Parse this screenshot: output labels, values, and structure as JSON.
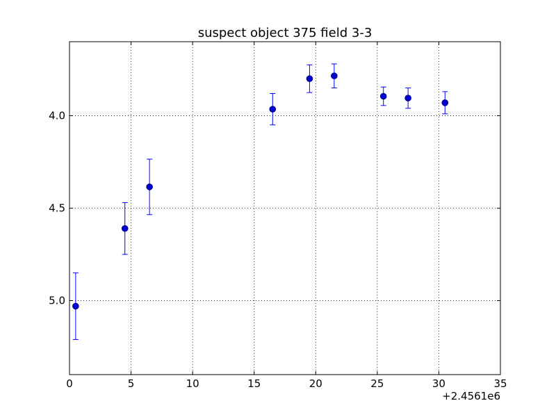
{
  "chart_data": {
    "type": "scatter",
    "title": "suspect object 375 field 3-3",
    "xlabel": "",
    "ylabel": "",
    "x_offset_label": "+2.4561e6",
    "xlim": [
      0,
      35
    ],
    "ylim": [
      5.4,
      3.6
    ],
    "y_inverted": true,
    "grid": true,
    "x_ticks": [
      0,
      5,
      10,
      15,
      20,
      25,
      30,
      35
    ],
    "x_tick_labels": [
      "0",
      "5",
      "10",
      "15",
      "20",
      "25",
      "30",
      "35"
    ],
    "y_ticks": [
      4.0,
      4.5,
      5.0
    ],
    "y_tick_labels": [
      "4.0",
      "4.5",
      "5.0"
    ],
    "points": [
      {
        "x": 0.5,
        "y": 5.03,
        "err": 0.18
      },
      {
        "x": 4.5,
        "y": 4.61,
        "err": 0.14
      },
      {
        "x": 6.5,
        "y": 4.385,
        "err": 0.15
      },
      {
        "x": 16.5,
        "y": 3.965,
        "err": 0.085
      },
      {
        "x": 19.5,
        "y": 3.8,
        "err": 0.075
      },
      {
        "x": 21.5,
        "y": 3.785,
        "err": 0.065
      },
      {
        "x": 25.5,
        "y": 3.895,
        "err": 0.05
      },
      {
        "x": 27.5,
        "y": 3.905,
        "err": 0.055
      },
      {
        "x": 30.5,
        "y": 3.93,
        "err": 0.06
      }
    ],
    "marker_color": "#0000cc",
    "errorbar_color": "#0000ff"
  }
}
